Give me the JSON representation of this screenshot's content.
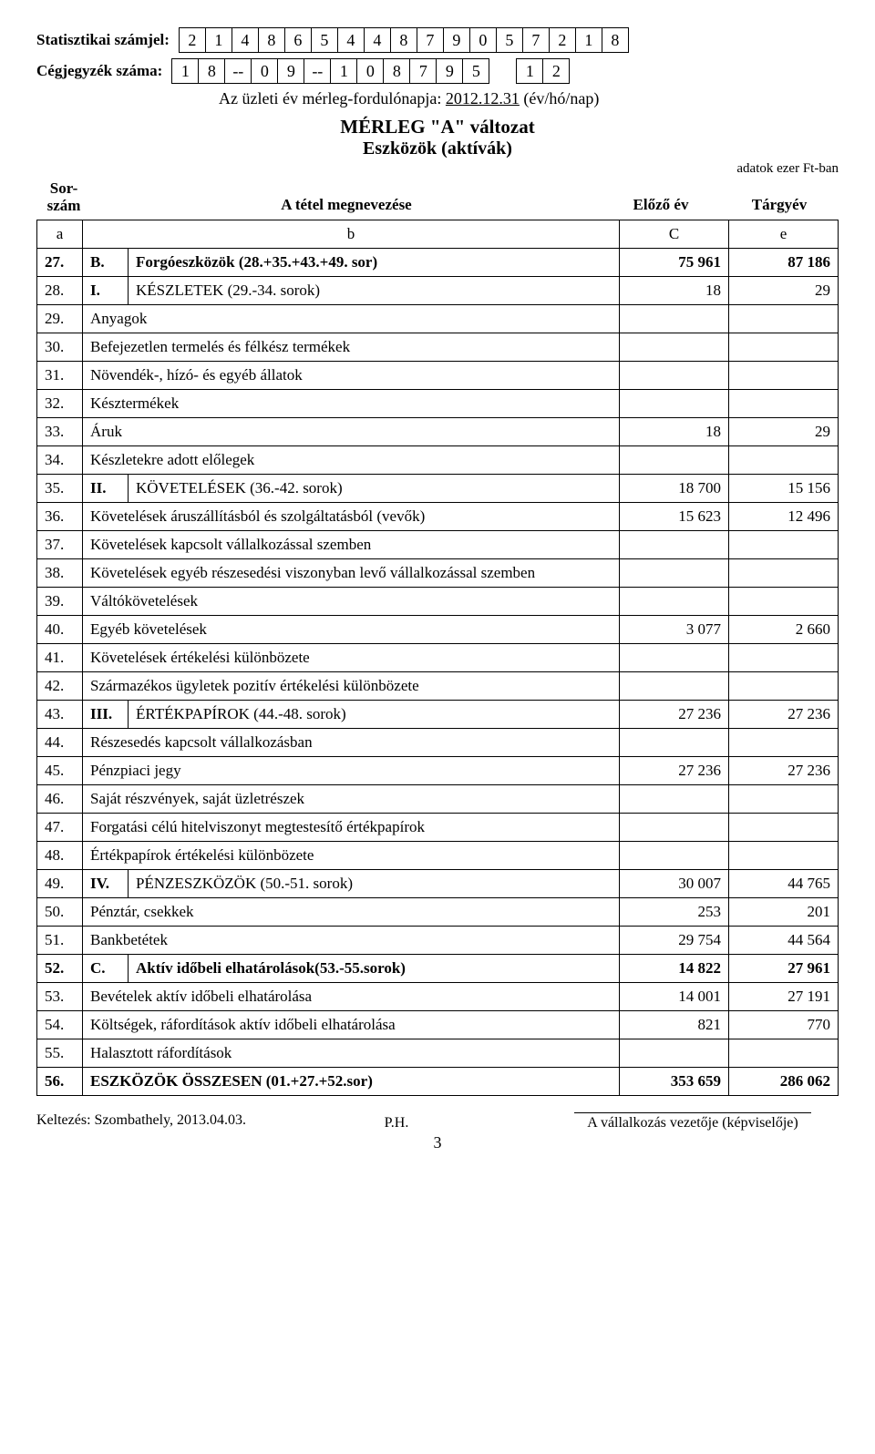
{
  "labels": {
    "stat_label": "Statisztikai számjel:",
    "reg_label": "Cégjegyzék száma:",
    "date_line_prefix": "Az üzleti év mérleg-fordulónapja:",
    "date_value": "2012.12.31",
    "date_suffix": "(év/hó/nap)",
    "title_main": "MÉRLEG \"A\" változat",
    "title_sub": "Eszközök (aktívák)",
    "unit_note": "adatok ezer Ft-ban",
    "hdr_sor": "Sor-\nszám",
    "hdr_megnev": "A tétel megnevezése",
    "hdr_elozo": "Előző év",
    "hdr_targy": "Tárgyév",
    "colrow_a": "a",
    "colrow_b": "b",
    "colrow_c": "C",
    "colrow_e": "e",
    "kelt": "Keltezés: Szombathely, 2013.04.03.",
    "ph": "P.H.",
    "sig_caption": "A vállalkozás vezetője (képviselője)",
    "page": "3"
  },
  "stat_digits": [
    "2",
    "1",
    "4",
    "8",
    "6",
    "5",
    "4",
    "4",
    "8",
    "7",
    "9",
    "0",
    "5",
    "7",
    "2",
    "1",
    "8"
  ],
  "reg_digits": [
    "1",
    "8",
    "--",
    "0",
    "9",
    "--",
    "1",
    "0",
    "8",
    "7",
    "9",
    "5",
    "",
    "1",
    "2"
  ],
  "rows": [
    {
      "n": "27.",
      "sec": "B.",
      "desc": "Forgóeszközök (28.+35.+43.+49. sor)",
      "c": "75 961",
      "e": "87 186",
      "bold": true
    },
    {
      "n": "28.",
      "sec": "I.",
      "desc": "KÉSZLETEK (29.-34. sorok)",
      "c": "18",
      "e": "29"
    },
    {
      "n": "29.",
      "sec": "",
      "desc": "Anyagok",
      "c": "",
      "e": ""
    },
    {
      "n": "30.",
      "sec": "",
      "desc": "Befejezetlen termelés és félkész termékek",
      "c": "",
      "e": ""
    },
    {
      "n": "31.",
      "sec": "",
      "desc": "Növendék-, hízó- és egyéb állatok",
      "c": "",
      "e": ""
    },
    {
      "n": "32.",
      "sec": "",
      "desc": "Késztermékek",
      "c": "",
      "e": ""
    },
    {
      "n": "33.",
      "sec": "",
      "desc": "Áruk",
      "c": "18",
      "e": "29"
    },
    {
      "n": "34.",
      "sec": "",
      "desc": "Készletekre adott előlegek",
      "c": "",
      "e": ""
    },
    {
      "n": "35.",
      "sec": "II.",
      "desc": "KÖVETELÉSEK (36.-42. sorok)",
      "c": "18 700",
      "e": "15 156"
    },
    {
      "n": "36.",
      "sec": "",
      "desc": "Követelések áruszállításból és szolgáltatásból (vevők)",
      "c": "15 623",
      "e": "12 496"
    },
    {
      "n": "37.",
      "sec": "",
      "desc": "Követelések kapcsolt vállalkozással szemben",
      "c": "",
      "e": ""
    },
    {
      "n": "38.",
      "sec": "",
      "desc": "Követelések egyéb részesedési viszonyban levő vállalkozással szemben",
      "c": "",
      "e": ""
    },
    {
      "n": "39.",
      "sec": "",
      "desc": "Váltókövetelések",
      "c": "",
      "e": ""
    },
    {
      "n": "40.",
      "sec": "",
      "desc": "Egyéb követelések",
      "c": "3 077",
      "e": "2 660"
    },
    {
      "n": "41.",
      "sec": "",
      "desc": "Követelések értékelési különbözete",
      "c": "",
      "e": ""
    },
    {
      "n": "42.",
      "sec": "",
      "desc": "Származékos ügyletek pozitív értékelési különbözete",
      "c": "",
      "e": ""
    },
    {
      "n": "43.",
      "sec": "III.",
      "desc": "ÉRTÉKPAPÍROK (44.-48. sorok)",
      "c": "27 236",
      "e": "27 236"
    },
    {
      "n": "44.",
      "sec": "",
      "desc": "Részesedés kapcsolt vállalkozásban",
      "c": "",
      "e": ""
    },
    {
      "n": "45.",
      "sec": "",
      "desc": "Pénzpiaci jegy",
      "c": "27 236",
      "e": "27 236"
    },
    {
      "n": "46.",
      "sec": "",
      "desc": "Saját részvények, saját üzletrészek",
      "c": "",
      "e": ""
    },
    {
      "n": "47.",
      "sec": "",
      "desc": "Forgatási célú hitelviszonyt megtestesítő értékpapírok",
      "c": "",
      "e": ""
    },
    {
      "n": "48.",
      "sec": "",
      "desc": "Értékpapírok értékelési különbözete",
      "c": "",
      "e": ""
    },
    {
      "n": "49.",
      "sec": "IV.",
      "desc": "PÉNZESZKÖZÖK (50.-51. sorok)",
      "c": "30 007",
      "e": "44 765"
    },
    {
      "n": "50.",
      "sec": "",
      "desc": "Pénztár, csekkek",
      "c": "253",
      "e": "201"
    },
    {
      "n": "51.",
      "sec": "",
      "desc": "Bankbetétek",
      "c": "29 754",
      "e": "44 564"
    },
    {
      "n": "52.",
      "sec": "C.",
      "desc": "Aktív időbeli elhatárolások(53.-55.sorok)",
      "c": "14 822",
      "e": "27 961",
      "bold": true
    },
    {
      "n": "53.",
      "sec": "",
      "desc": "Bevételek aktív időbeli elhatárolása",
      "c": "14 001",
      "e": "27 191"
    },
    {
      "n": "54.",
      "sec": "",
      "desc": "Költségek, ráfordítások aktív időbeli elhatárolása",
      "c": "821",
      "e": "770"
    },
    {
      "n": "55.",
      "sec": "",
      "desc": "Halasztott ráfordítások",
      "c": "",
      "e": ""
    },
    {
      "n": "56.",
      "sec": "",
      "desc": "ESZKÖZÖK ÖSSZESEN (01.+27.+52.sor)",
      "c": "353 659",
      "e": "286 062",
      "bold": true
    }
  ]
}
